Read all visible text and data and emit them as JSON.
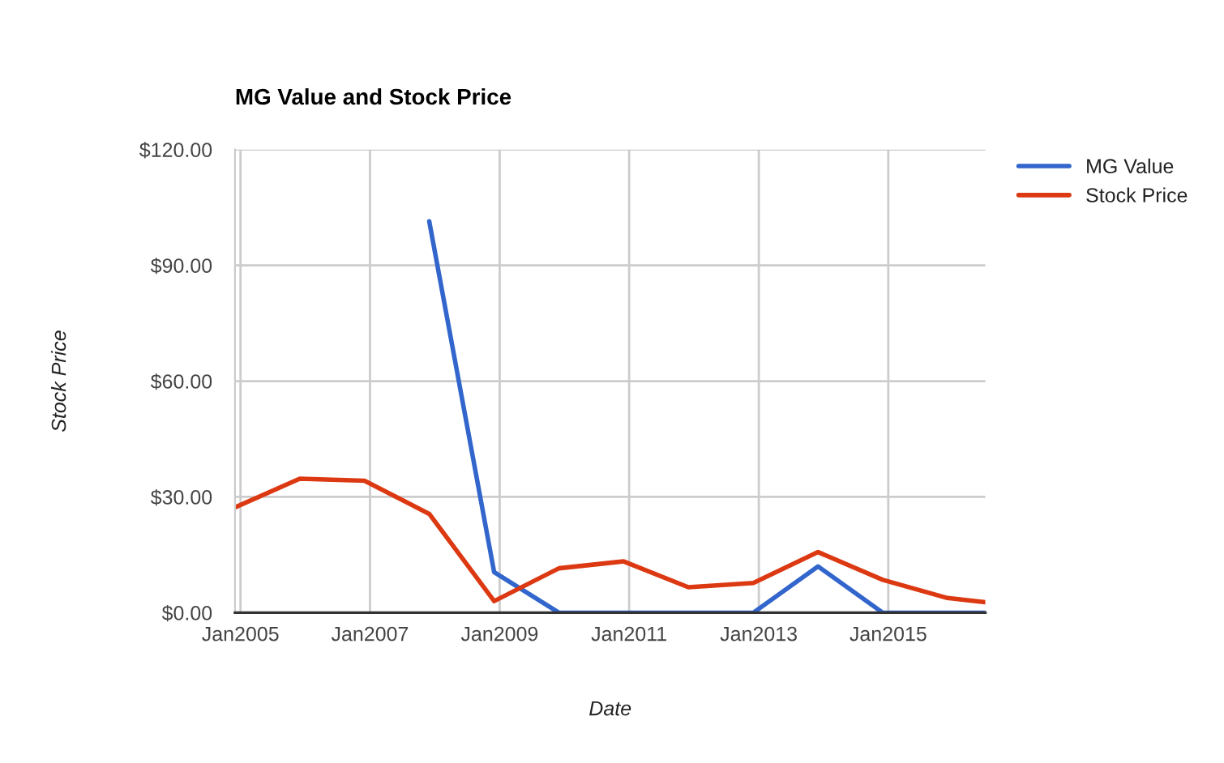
{
  "chart_data": {
    "type": "line",
    "title": "MG Value and Stock Price",
    "xlabel": "Date",
    "ylabel": "Stock Price",
    "x": [
      "2004-12",
      "2005-12",
      "2006-12",
      "2007-12",
      "2008-12",
      "2009-12",
      "2010-12",
      "2011-12",
      "2012-12",
      "2013-12",
      "2014-12",
      "2015-12",
      "2016-07"
    ],
    "series": [
      {
        "name": "MG Value",
        "color": "#3366cc",
        "values": [
          null,
          null,
          null,
          101.4,
          10.5,
          0,
          0,
          0,
          0,
          12,
          0,
          0,
          0
        ]
      },
      {
        "name": "Stock Price",
        "color": "#dc3912",
        "values": [
          27.3,
          34.7,
          34.2,
          25.6,
          3.0,
          11.5,
          13.3,
          6.6,
          7.7,
          15.7,
          8.5,
          3.8,
          2.7
        ]
      }
    ],
    "xlim": [
      "2004-12",
      "2016-07"
    ],
    "xticks": [
      {
        "value": "2005-01",
        "label": "Jan2005"
      },
      {
        "value": "2007-01",
        "label": "Jan2007"
      },
      {
        "value": "2009-01",
        "label": "Jan2009"
      },
      {
        "value": "2011-01",
        "label": "Jan2011"
      },
      {
        "value": "2013-01",
        "label": "Jan2013"
      },
      {
        "value": "2015-01",
        "label": "Jan2015"
      }
    ],
    "ylim": [
      0,
      120
    ],
    "yticks": [
      {
        "value": 0,
        "label": "$0.00"
      },
      {
        "value": 30,
        "label": "$30.00"
      },
      {
        "value": 60,
        "label": "$60.00"
      },
      {
        "value": 90,
        "label": "$90.00"
      },
      {
        "value": 120,
        "label": "$120.00"
      }
    ],
    "grid": true,
    "legend": "right"
  }
}
